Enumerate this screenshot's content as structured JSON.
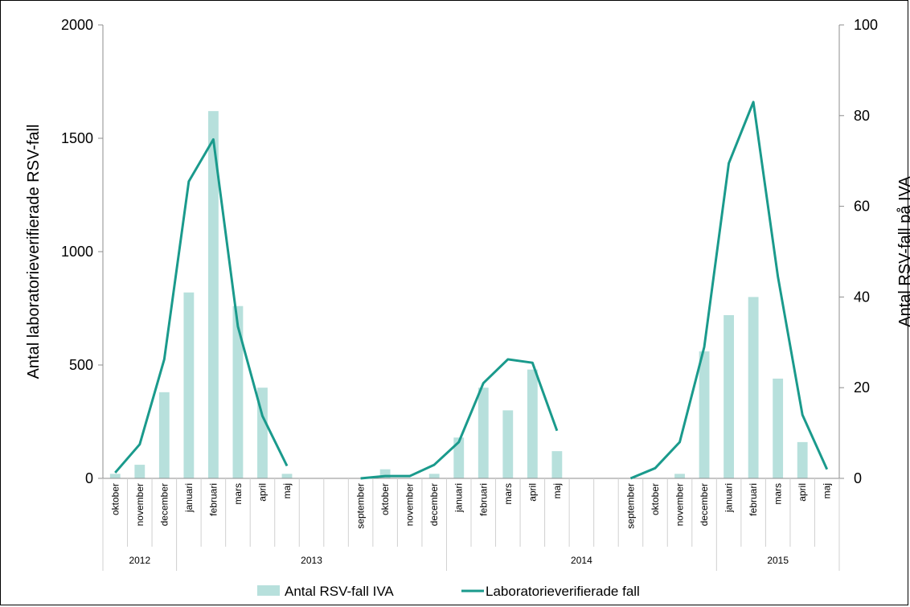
{
  "chart_data": {
    "type": "bar",
    "categories": [
      "oktober",
      "november",
      "december",
      "januari",
      "februari",
      "mars",
      "april",
      "maj",
      "",
      "",
      "september",
      "oktober",
      "november",
      "december",
      "januari",
      "februari",
      "mars",
      "april",
      "maj",
      "",
      "",
      "september",
      "oktober",
      "november",
      "december",
      "januari",
      "februari",
      "mars",
      "april",
      "maj"
    ],
    "year_groups": [
      {
        "label": "2012",
        "start": 0,
        "end": 2
      },
      {
        "label": "2013",
        "start": 3,
        "end": 13
      },
      {
        "label": "2014",
        "start": 14,
        "end": 24
      },
      {
        "label": "2015",
        "start": 25,
        "end": 29
      }
    ],
    "series": [
      {
        "name": "Antal RSV-fall IVA",
        "type": "bar",
        "axis": "right",
        "color": "#b7e0dc",
        "values": [
          1,
          3,
          19,
          41,
          81,
          38,
          20,
          1,
          null,
          null,
          0,
          2,
          0,
          1,
          9,
          20,
          15,
          24,
          6,
          null,
          null,
          0,
          0,
          1,
          28,
          36,
          40,
          22,
          8,
          0
        ]
      },
      {
        "name": "Laboratorieverifierade fall",
        "type": "line",
        "axis": "left",
        "color": "#1a9a8c",
        "values": [
          25,
          150,
          525,
          1310,
          1495,
          670,
          275,
          55,
          null,
          null,
          0,
          10,
          10,
          60,
          160,
          420,
          525,
          510,
          210,
          null,
          null,
          0,
          45,
          160,
          580,
          1390,
          1660,
          890,
          280,
          40
        ]
      }
    ],
    "left_axis": {
      "title": "Antal laboratorieverifierade RSV-fall",
      "min": 0,
      "max": 2000,
      "ticks": [
        "0",
        "500",
        "1000",
        "1500",
        "2000"
      ]
    },
    "right_axis": {
      "title": "Antal RSV-fall på IVA",
      "min": 0,
      "max": 100,
      "ticks": [
        "0",
        "20",
        "40",
        "60",
        "80",
        "100"
      ]
    },
    "legend_position": "bottom"
  }
}
